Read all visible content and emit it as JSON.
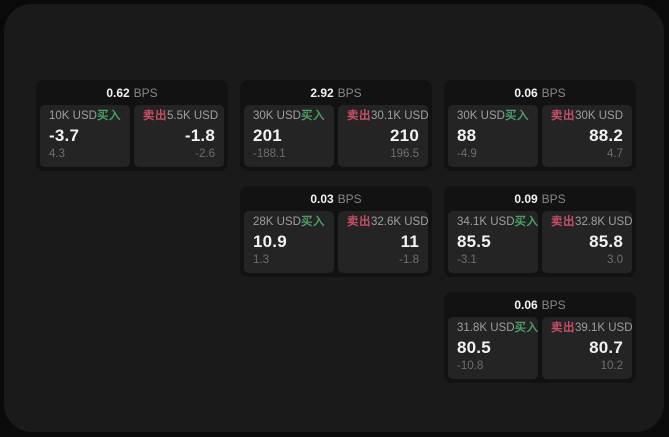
{
  "labels": {
    "bps_suffix": "BPS",
    "buy": "买入",
    "sell": "卖出"
  },
  "colors": {
    "outer_bg": "#0a0a0a",
    "panel_bg": "#1a1a1a",
    "card_bg": "#121212",
    "tile_bg": "#242424",
    "buy_green": "#4d9b66",
    "sell_red": "#c44e64",
    "text_primary": "#f2f2f2",
    "text_secondary": "#868686",
    "text_amount": "#9e9e9e",
    "text_muted": "#6e6e6e"
  },
  "cards": [
    {
      "row": 1,
      "col": 1,
      "bps_value": "0.62",
      "buy": {
        "amount": "10K USD",
        "value": "-3.7",
        "sub_value": "4.3"
      },
      "sell": {
        "amount": "5.5K USD",
        "value": "-1.8",
        "sub_value": "-2.6"
      }
    },
    {
      "row": 1,
      "col": 2,
      "bps_value": "2.92",
      "buy": {
        "amount": "30K USD",
        "value": "201",
        "sub_value": "-188.1"
      },
      "sell": {
        "amount": "30.1K USD",
        "value": "210",
        "sub_value": "196.5"
      }
    },
    {
      "row": 1,
      "col": 3,
      "bps_value": "0.06",
      "buy": {
        "amount": "30K USD",
        "value": "88",
        "sub_value": "-4.9"
      },
      "sell": {
        "amount": "30K USD",
        "value": "88.2",
        "sub_value": "4.7"
      }
    },
    {
      "row": 2,
      "col": 2,
      "bps_value": "0.03",
      "buy": {
        "amount": "28K USD",
        "value": "10.9",
        "sub_value": "1.3"
      },
      "sell": {
        "amount": "32.6K USD",
        "value": "11",
        "sub_value": "-1.8"
      }
    },
    {
      "row": 2,
      "col": 3,
      "bps_value": "0.09",
      "buy": {
        "amount": "34.1K USD",
        "value": "85.5",
        "sub_value": "-3.1"
      },
      "sell": {
        "amount": "32.8K USD",
        "value": "85.8",
        "sub_value": "3.0"
      }
    },
    {
      "row": 3,
      "col": 3,
      "bps_value": "0.06",
      "buy": {
        "amount": "31.8K USD",
        "value": "80.5",
        "sub_value": "-10.8"
      },
      "sell": {
        "amount": "39.1K USD",
        "value": "80.7",
        "sub_value": "10.2"
      }
    }
  ]
}
